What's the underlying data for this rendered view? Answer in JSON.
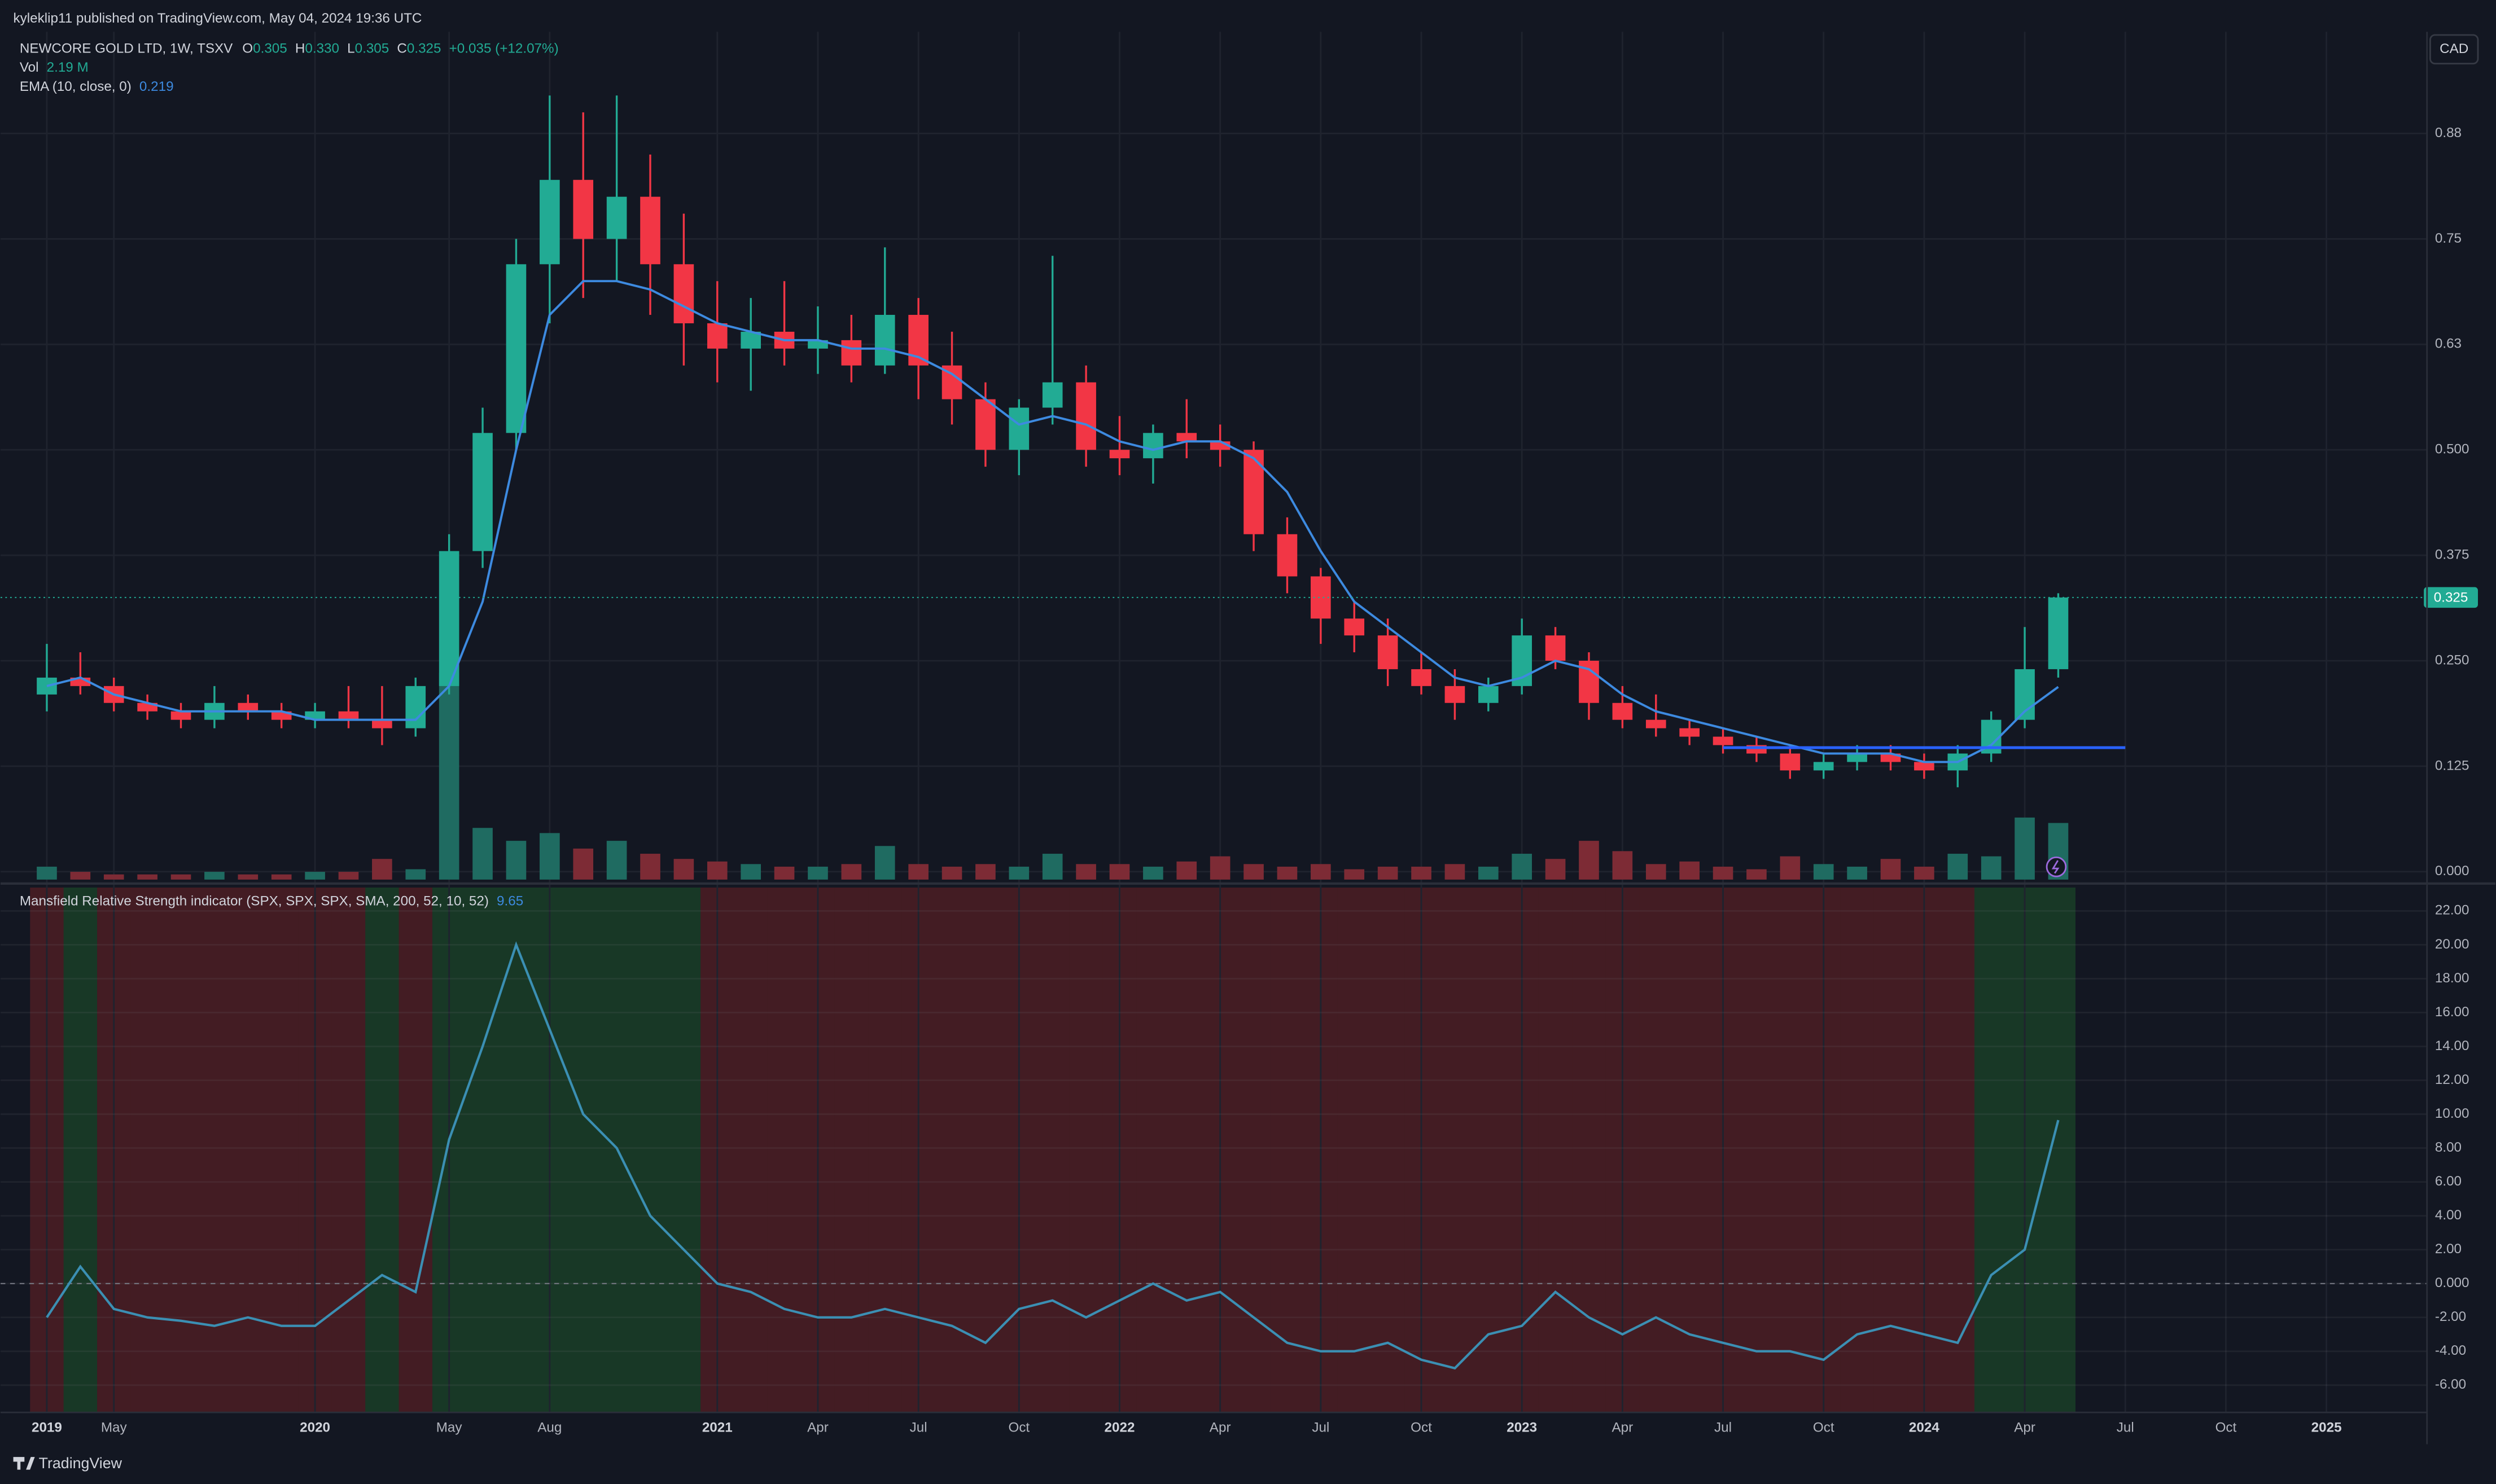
{
  "header": {
    "publisher": "kyleklip11 published on TradingView.com, May 04, 2024 19:36 UTC",
    "currency": "CAD",
    "brand": "TradingView"
  },
  "chart_data": [
    {
      "type": "candlestick",
      "title": "NEWCORE GOLD LTD, 1W, TSXV",
      "legend": [
        {
          "label": "O",
          "value": "0.305"
        },
        {
          "label": "H",
          "value": "0.330"
        },
        {
          "label": "L",
          "value": "0.305"
        },
        {
          "label": "C",
          "value": "0.325"
        }
      ],
      "change": "+0.035 (+12.07%)",
      "up_color": "#22ab94",
      "down_color": "#f23645",
      "x": [
        "2019-01",
        "2019-03",
        "2019-05",
        "2019-06",
        "2019-08",
        "2019-09",
        "2019-11",
        "2019-12",
        "2020-01",
        "2020-02",
        "2020-03",
        "2020-04",
        "2020-05",
        "2020-06",
        "2020-07",
        "2020-08",
        "2020-09",
        "2020-10",
        "2020-11",
        "2020-12",
        "2021-01",
        "2021-02",
        "2021-03",
        "2021-04",
        "2021-05",
        "2021-06",
        "2021-07",
        "2021-08",
        "2021-09",
        "2021-10",
        "2021-11",
        "2021-12",
        "2022-01",
        "2022-02",
        "2022-03",
        "2022-04",
        "2022-05",
        "2022-06",
        "2022-07",
        "2022-08",
        "2022-09",
        "2022-10",
        "2022-11",
        "2022-12",
        "2023-01",
        "2023-02",
        "2023-03",
        "2023-04",
        "2023-05",
        "2023-06",
        "2023-07",
        "2023-08",
        "2023-09",
        "2023-10",
        "2023-11",
        "2023-12",
        "2024-01",
        "2024-02",
        "2024-03",
        "2024-04",
        "2024-05"
      ],
      "open": [
        0.21,
        0.23,
        0.22,
        0.2,
        0.19,
        0.18,
        0.2,
        0.19,
        0.18,
        0.19,
        0.18,
        0.17,
        0.22,
        0.38,
        0.52,
        0.72,
        0.82,
        0.75,
        0.8,
        0.72,
        0.65,
        0.62,
        0.64,
        0.62,
        0.63,
        0.6,
        0.66,
        0.6,
        0.56,
        0.5,
        0.55,
        0.58,
        0.5,
        0.49,
        0.52,
        0.51,
        0.5,
        0.4,
        0.35,
        0.3,
        0.28,
        0.24,
        0.22,
        0.2,
        0.22,
        0.28,
        0.25,
        0.2,
        0.18,
        0.17,
        0.16,
        0.15,
        0.14,
        0.12,
        0.13,
        0.14,
        0.13,
        0.12,
        0.14,
        0.18,
        0.24
      ],
      "high": [
        0.27,
        0.26,
        0.23,
        0.21,
        0.2,
        0.22,
        0.21,
        0.2,
        0.2,
        0.22,
        0.22,
        0.23,
        0.4,
        0.55,
        0.75,
        0.92,
        0.9,
        0.92,
        0.85,
        0.78,
        0.7,
        0.68,
        0.7,
        0.67,
        0.66,
        0.74,
        0.68,
        0.64,
        0.58,
        0.56,
        0.73,
        0.6,
        0.54,
        0.53,
        0.56,
        0.53,
        0.51,
        0.42,
        0.36,
        0.32,
        0.3,
        0.26,
        0.24,
        0.23,
        0.3,
        0.29,
        0.26,
        0.22,
        0.21,
        0.18,
        0.17,
        0.16,
        0.15,
        0.14,
        0.15,
        0.15,
        0.14,
        0.15,
        0.19,
        0.29,
        0.33
      ],
      "low": [
        0.19,
        0.21,
        0.19,
        0.18,
        0.17,
        0.17,
        0.18,
        0.17,
        0.17,
        0.17,
        0.15,
        0.16,
        0.21,
        0.36,
        0.5,
        0.65,
        0.68,
        0.7,
        0.66,
        0.6,
        0.58,
        0.57,
        0.6,
        0.59,
        0.58,
        0.59,
        0.56,
        0.53,
        0.48,
        0.47,
        0.53,
        0.48,
        0.47,
        0.46,
        0.49,
        0.48,
        0.38,
        0.33,
        0.27,
        0.26,
        0.22,
        0.21,
        0.18,
        0.19,
        0.21,
        0.24,
        0.18,
        0.17,
        0.16,
        0.15,
        0.14,
        0.13,
        0.11,
        0.11,
        0.12,
        0.12,
        0.11,
        0.1,
        0.13,
        0.17,
        0.23
      ],
      "close": [
        0.23,
        0.22,
        0.2,
        0.19,
        0.18,
        0.2,
        0.19,
        0.18,
        0.19,
        0.18,
        0.17,
        0.22,
        0.38,
        0.52,
        0.72,
        0.82,
        0.75,
        0.8,
        0.72,
        0.65,
        0.62,
        0.64,
        0.62,
        0.63,
        0.6,
        0.66,
        0.6,
        0.56,
        0.5,
        0.55,
        0.58,
        0.5,
        0.49,
        0.52,
        0.51,
        0.5,
        0.4,
        0.35,
        0.3,
        0.28,
        0.24,
        0.22,
        0.2,
        0.22,
        0.28,
        0.25,
        0.2,
        0.18,
        0.17,
        0.16,
        0.15,
        0.14,
        0.12,
        0.13,
        0.14,
        0.13,
        0.12,
        0.14,
        0.18,
        0.24,
        0.325
      ],
      "ema": {
        "name": "EMA (10, close, 0)",
        "color": "#3d8ae0",
        "values": [
          0.22,
          0.23,
          0.21,
          0.2,
          0.19,
          0.19,
          0.19,
          0.19,
          0.18,
          0.18,
          0.18,
          0.18,
          0.22,
          0.32,
          0.5,
          0.66,
          0.7,
          0.7,
          0.69,
          0.67,
          0.65,
          0.64,
          0.63,
          0.63,
          0.62,
          0.62,
          0.61,
          0.59,
          0.56,
          0.53,
          0.54,
          0.53,
          0.51,
          0.5,
          0.51,
          0.51,
          0.49,
          0.45,
          0.38,
          0.32,
          0.29,
          0.26,
          0.23,
          0.22,
          0.23,
          0.25,
          0.24,
          0.21,
          0.19,
          0.18,
          0.17,
          0.16,
          0.15,
          0.14,
          0.14,
          0.14,
          0.13,
          0.13,
          0.15,
          0.19,
          0.219
        ]
      },
      "volume": {
        "name": "Vol",
        "last_label": "2.19 M",
        "up_color": "#1f6b61",
        "down_color": "#7d2b35",
        "values": [
          0.5,
          0.3,
          0.2,
          0.2,
          0.2,
          0.3,
          0.2,
          0.2,
          0.3,
          0.3,
          0.8,
          0.4,
          8.0,
          2.0,
          1.5,
          1.8,
          1.2,
          1.5,
          1.0,
          0.8,
          0.7,
          0.6,
          0.5,
          0.5,
          0.6,
          1.3,
          0.6,
          0.5,
          0.6,
          0.5,
          1.0,
          0.6,
          0.6,
          0.5,
          0.7,
          0.9,
          0.6,
          0.5,
          0.6,
          0.4,
          0.5,
          0.5,
          0.6,
          0.5,
          1.0,
          0.8,
          1.5,
          1.1,
          0.6,
          0.7,
          0.5,
          0.4,
          0.9,
          0.6,
          0.5,
          0.8,
          0.5,
          1.0,
          0.9,
          2.4,
          2.19
        ]
      },
      "hline": {
        "value": 0.147,
        "from": "2023-07",
        "to": "2024-07",
        "color": "#2962ff"
      },
      "ylim": [
        -0.0094,
        0.9955
      ],
      "yticks": [
        {
          "value": 0,
          "label": "0.000"
        },
        0.125,
        {
          "value": 0.25,
          "label": "0.250"
        },
        0.375,
        {
          "value": 0.5,
          "label": "0.500"
        },
        {
          "value": 0.625,
          "label": "0.63"
        },
        0.75,
        {
          "value": 0.875,
          "label": "0.88"
        }
      ],
      "grid": true
    },
    {
      "type": "line",
      "title": "Mansfield Relative Strength indicator (SPX, SPX, SPX, SMA, 200, 52, 10, 52)",
      "color": "#3b8fb3",
      "positive_color": "#183826",
      "negative_color": "#431c23",
      "x": [
        "2019-01",
        "2019-03",
        "2019-05",
        "2019-06",
        "2019-08",
        "2019-09",
        "2019-11",
        "2019-12",
        "2020-01",
        "2020-02",
        "2020-03",
        "2020-04",
        "2020-05",
        "2020-06",
        "2020-07",
        "2020-08",
        "2020-09",
        "2020-10",
        "2020-11",
        "2020-12",
        "2021-01",
        "2021-02",
        "2021-03",
        "2021-04",
        "2021-05",
        "2021-06",
        "2021-07",
        "2021-08",
        "2021-09",
        "2021-10",
        "2021-11",
        "2021-12",
        "2022-01",
        "2022-02",
        "2022-03",
        "2022-04",
        "2022-05",
        "2022-06",
        "2022-07",
        "2022-08",
        "2022-09",
        "2022-10",
        "2022-11",
        "2022-12",
        "2023-01",
        "2023-02",
        "2023-03",
        "2023-04",
        "2023-05",
        "2023-06",
        "2023-07",
        "2023-08",
        "2023-09",
        "2023-10",
        "2023-11",
        "2023-12",
        "2024-01",
        "2024-02",
        "2024-03",
        "2024-04",
        "2024-05"
      ],
      "values": [
        -2,
        1.0,
        -1.5,
        -2,
        -2.2,
        -2.5,
        -2,
        -2.5,
        -2.5,
        -1,
        0.5,
        -0.5,
        8.5,
        14,
        20,
        15,
        10,
        8,
        4,
        2,
        0,
        -0.5,
        -1.5,
        -2,
        -2,
        -1.5,
        -2,
        -2.5,
        -3.5,
        -1.5,
        -1,
        -2,
        -1,
        0,
        -1,
        -0.5,
        -2,
        -3.5,
        -4,
        -4,
        -3.5,
        -4.5,
        -5,
        -3,
        -2.5,
        -0.5,
        -2,
        -3,
        -2,
        -3,
        -3.5,
        -4,
        -4,
        -4.5,
        -3,
        -2.5,
        -3,
        -3.5,
        0.5,
        2,
        9.65
      ],
      "ylim": [
        -7.61,
        23.38
      ],
      "yticks": [
        {
          "value": -6,
          "label": "-6.00"
        },
        {
          "value": -4,
          "label": "-4.00"
        },
        {
          "value": -2,
          "label": "-2.00"
        },
        {
          "value": 0,
          "label": "0.000"
        },
        {
          "value": 2,
          "label": "2.00"
        },
        {
          "value": 4,
          "label": "4.00"
        },
        {
          "value": 6,
          "label": "6.00"
        },
        {
          "value": 8,
          "label": "8.00"
        },
        {
          "value": 10,
          "label": "10.00"
        },
        {
          "value": 12,
          "label": "12.00"
        },
        {
          "value": 14,
          "label": "14.00"
        },
        {
          "value": 16,
          "label": "16.00"
        },
        {
          "value": 18,
          "label": "18.00"
        },
        {
          "value": 20,
          "label": "20.00"
        },
        {
          "value": 22,
          "label": "22.00"
        }
      ],
      "xlim": [
        "2018-12",
        "2025-04"
      ],
      "xticks": [
        {
          "value": "2019-01",
          "label": "2019"
        },
        {
          "value": "2019-05",
          "label": "May"
        },
        {
          "value": "2020-01",
          "label": "2020"
        },
        {
          "value": "2020-05",
          "label": "May"
        },
        {
          "value": "2020-08",
          "label": "Aug"
        },
        {
          "value": "2021-01",
          "label": "2021"
        },
        {
          "value": "2021-04",
          "label": "Apr"
        },
        {
          "value": "2021-07",
          "label": "Jul"
        },
        {
          "value": "2021-10",
          "label": "Oct"
        },
        {
          "value": "2022-01",
          "label": "2022"
        },
        {
          "value": "2022-04",
          "label": "Apr"
        },
        {
          "value": "2022-07",
          "label": "Jul"
        },
        {
          "value": "2022-10",
          "label": "Oct"
        },
        {
          "value": "2023-01",
          "label": "2023"
        },
        {
          "value": "2023-04",
          "label": "Apr"
        },
        {
          "value": "2023-07",
          "label": "Jul"
        },
        {
          "value": "2023-10",
          "label": "Oct"
        },
        {
          "value": "2024-01",
          "label": "2024"
        },
        {
          "value": "2024-04",
          "label": "Apr"
        },
        {
          "value": "2024-07",
          "label": "Jul"
        },
        {
          "value": "2024-10",
          "label": "Oct"
        },
        {
          "value": "2025-01",
          "label": "2025"
        }
      ],
      "grid": true
    }
  ]
}
